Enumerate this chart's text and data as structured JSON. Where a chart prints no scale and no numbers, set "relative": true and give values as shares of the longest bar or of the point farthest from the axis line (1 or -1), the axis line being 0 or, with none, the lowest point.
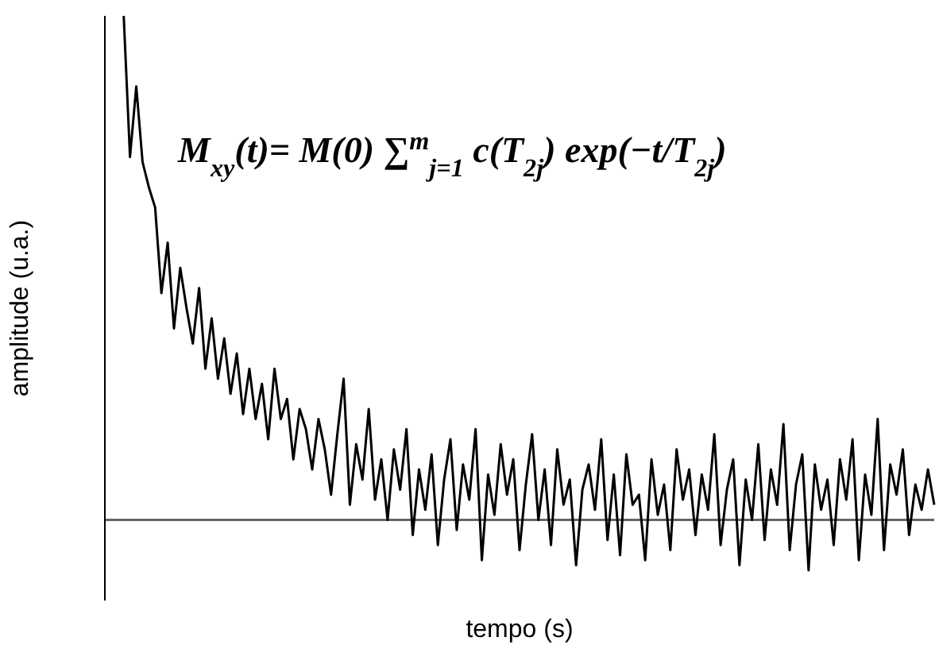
{
  "chart_data": {
    "type": "line",
    "relative": true,
    "xlabel": "tempo (s)",
    "ylabel": "amplitude (u.a.)",
    "color": "#000000",
    "annotations": [
      "M$_{xy}$(t)= M(0) ∑$^{m}$$_{j=1}$ c(T$_{2j}$) exp(−t/T$_{2j}$)"
    ],
    "categories": [
      null,
      null,
      null,
      null,
      null,
      null,
      null,
      null,
      null,
      null,
      null,
      null,
      null,
      null,
      null,
      null,
      null,
      null,
      null,
      null,
      null,
      null,
      null,
      null,
      null,
      null,
      null,
      null,
      null,
      null,
      null,
      null,
      null,
      null,
      null,
      null,
      null,
      null,
      null,
      null,
      null,
      null,
      null,
      null,
      null,
      null,
      null,
      null,
      null,
      null,
      null,
      null,
      null,
      null,
      null,
      null,
      null,
      null,
      null,
      null,
      null,
      null,
      null,
      null,
      null,
      null,
      null,
      null,
      null,
      null,
      null,
      null,
      null,
      null,
      null,
      null,
      null,
      null,
      null,
      null,
      null,
      null,
      null,
      null,
      null,
      null,
      null,
      null,
      null,
      null,
      null,
      null,
      null,
      null,
      null,
      null,
      null,
      null,
      null,
      null,
      null,
      null,
      null,
      null,
      null,
      null,
      null,
      null,
      null,
      null,
      null,
      null,
      null,
      null,
      null,
      null,
      null,
      null,
      null,
      null,
      null,
      null,
      null,
      null,
      null,
      null,
      null,
      null,
      null,
      null
    ],
    "values": [
      1.0,
      0.72,
      0.86,
      0.71,
      0.66,
      0.62,
      0.45,
      0.55,
      0.38,
      0.5,
      0.42,
      0.35,
      0.46,
      0.3,
      0.4,
      0.28,
      0.36,
      0.25,
      0.33,
      0.21,
      0.3,
      0.2,
      0.27,
      0.16,
      0.3,
      0.2,
      0.24,
      0.12,
      0.22,
      0.18,
      0.1,
      0.2,
      0.14,
      0.05,
      0.17,
      0.28,
      0.03,
      0.15,
      0.08,
      0.22,
      0.04,
      0.12,
      0.0,
      0.14,
      0.06,
      0.18,
      -0.03,
      0.1,
      0.02,
      0.13,
      -0.05,
      0.08,
      0.16,
      -0.02,
      0.11,
      0.04,
      0.18,
      -0.08,
      0.09,
      0.01,
      0.15,
      0.05,
      0.12,
      -0.06,
      0.07,
      0.17,
      0.0,
      0.1,
      -0.05,
      0.14,
      0.03,
      0.08,
      -0.09,
      0.06,
      0.11,
      0.02,
      0.16,
      -0.04,
      0.09,
      -0.07,
      0.13,
      0.03,
      0.05,
      -0.08,
      0.12,
      0.01,
      0.07,
      -0.06,
      0.14,
      0.04,
      0.1,
      -0.03,
      0.09,
      0.02,
      0.17,
      -0.05,
      0.06,
      0.12,
      -0.09,
      0.08,
      0.0,
      0.15,
      -0.04,
      0.1,
      0.03,
      0.19,
      -0.06,
      0.07,
      0.13,
      -0.1,
      0.11,
      0.02,
      0.08,
      -0.05,
      0.12,
      0.04,
      0.16,
      -0.08,
      0.09,
      0.01,
      0.2,
      -0.06,
      0.11,
      0.05,
      0.14,
      -0.03,
      0.07,
      0.02,
      0.1,
      0.03
    ]
  }
}
